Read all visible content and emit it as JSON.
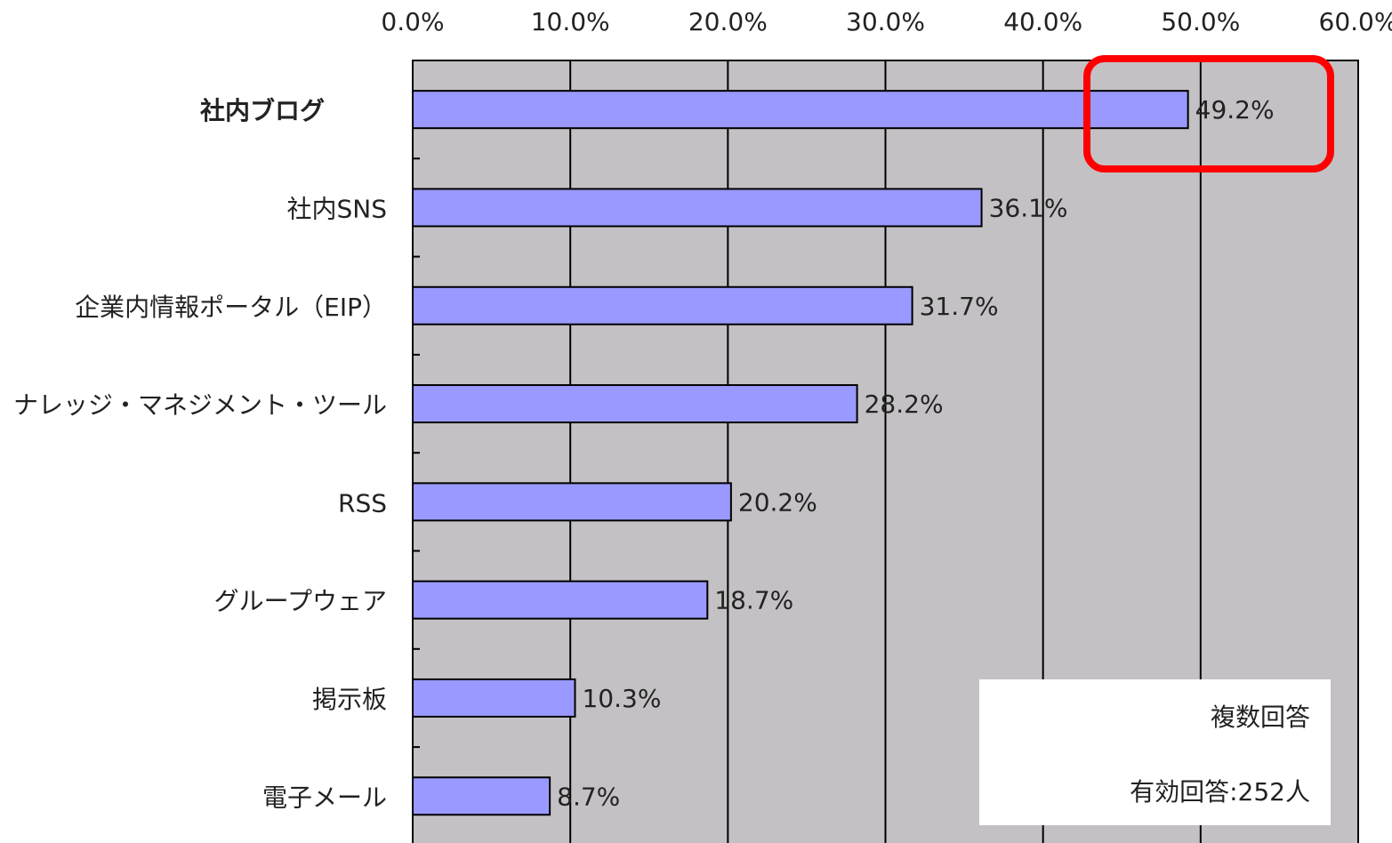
{
  "chart_data": {
    "type": "bar",
    "orientation": "horizontal",
    "categories": [
      "社内ブログ",
      "社内SNS",
      "企業内情報ポータル（EIP）",
      "ナレッジ・マネジメント・ツール",
      "RSS",
      "グループウェア",
      "掲示板",
      "電子メール"
    ],
    "values": [
      49.2,
      36.1,
      31.7,
      28.2,
      20.2,
      18.7,
      10.3,
      8.7
    ],
    "value_labels": [
      "49.2%",
      "36.1%",
      "31.7%",
      "28.2%",
      "20.2%",
      "18.7%",
      "10.3%",
      "8.7%"
    ],
    "color": "#9999ff",
    "xlim": [
      0,
      60
    ],
    "xticks": [
      {
        "value": 0,
        "label": "0.0%"
      },
      {
        "value": 10,
        "label": "10.0%"
      },
      {
        "value": 20,
        "label": "20.0%"
      },
      {
        "value": 30,
        "label": "30.0%"
      },
      {
        "value": 40,
        "label": "40.0%"
      },
      {
        "value": 50,
        "label": "50.0%"
      },
      {
        "value": 60,
        "label": "60.0%"
      }
    ],
    "grid": true,
    "annotations": [
      "複数回答",
      "有効回答:252人"
    ]
  }
}
